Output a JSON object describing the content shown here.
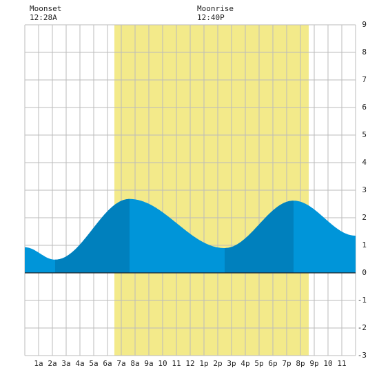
{
  "annotations": {
    "moonset": {
      "label": "Moonset",
      "time": "12:28A"
    },
    "moonrise": {
      "label": "Moonrise",
      "time": "12:40P"
    }
  },
  "chart_data": {
    "type": "area",
    "x_unit": "hour of day",
    "xlim": [
      0,
      24
    ],
    "ylim": [
      -3,
      9
    ],
    "y_ticks": [
      "-3",
      "-2",
      "-1",
      "0",
      "1",
      "2",
      "3",
      "4",
      "5",
      "6",
      "7",
      "8",
      "9"
    ],
    "x_tick_labels": [
      {
        "hour": 1,
        "label": "1a"
      },
      {
        "hour": 2,
        "label": "2a"
      },
      {
        "hour": 3,
        "label": "3a"
      },
      {
        "hour": 4,
        "label": "4a"
      },
      {
        "hour": 5,
        "label": "5a"
      },
      {
        "hour": 6,
        "label": "6a"
      },
      {
        "hour": 7,
        "label": "7a"
      },
      {
        "hour": 8,
        "label": "8a"
      },
      {
        "hour": 9,
        "label": "9a"
      },
      {
        "hour": 10,
        "label": "10"
      },
      {
        "hour": 11,
        "label": "11"
      },
      {
        "hour": 12,
        "label": "12"
      },
      {
        "hour": 13,
        "label": "1p"
      },
      {
        "hour": 14,
        "label": "2p"
      },
      {
        "hour": 15,
        "label": "3p"
      },
      {
        "hour": 16,
        "label": "4p"
      },
      {
        "hour": 17,
        "label": "5p"
      },
      {
        "hour": 18,
        "label": "6p"
      },
      {
        "hour": 19,
        "label": "7p"
      },
      {
        "hour": 20,
        "label": "8p"
      },
      {
        "hour": 21,
        "label": "9p"
      },
      {
        "hour": 22,
        "label": "10"
      },
      {
        "hour": 23,
        "label": "11"
      }
    ],
    "daylight": {
      "start": 6.5,
      "end": 20.6
    },
    "tide": [
      {
        "time": 0.0,
        "height": 0.93
      },
      {
        "time": 2.2,
        "height": 0.48,
        "type": "low"
      },
      {
        "time": 7.6,
        "height": 2.68,
        "type": "high"
      },
      {
        "time": 14.5,
        "height": 0.9,
        "type": "low"
      },
      {
        "time": 19.5,
        "height": 2.62,
        "type": "high"
      },
      {
        "time": 24.0,
        "height": 1.35
      }
    ],
    "grid": true,
    "colors": {
      "daylight": "#f3ea8a",
      "tide_fill": "#0095d9",
      "tide_rising": "#0080bd",
      "grid": "#bbbbbb",
      "zero_line": "#222222"
    }
  }
}
